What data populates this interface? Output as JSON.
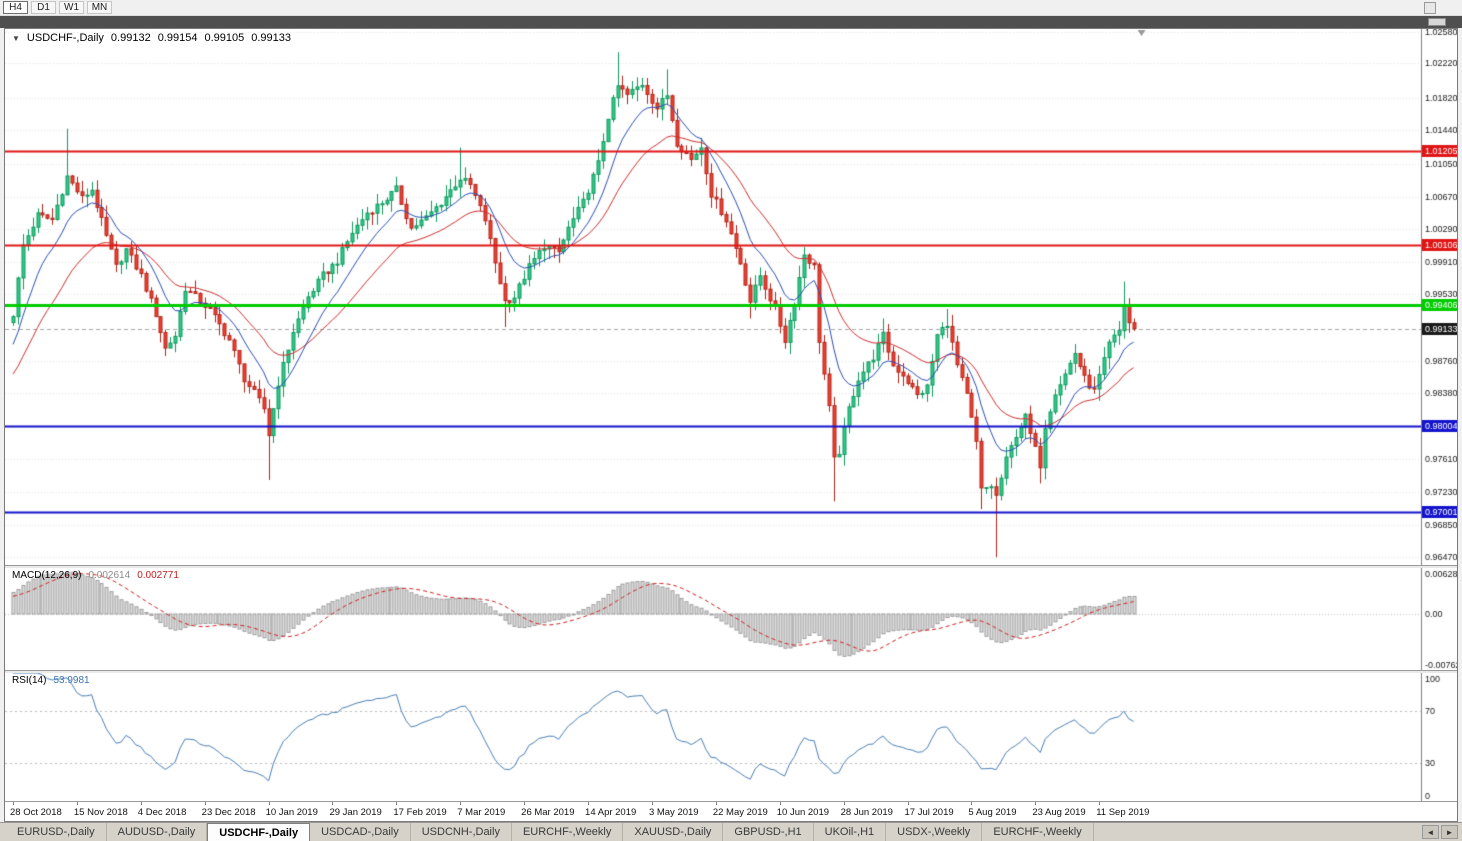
{
  "toolbar": {
    "timeframes": [
      {
        "label": "H4",
        "active": true
      },
      {
        "label": "D1",
        "active": false
      },
      {
        "label": "W1",
        "active": false
      },
      {
        "label": "MN",
        "active": false
      }
    ]
  },
  "chart_header": {
    "dropdown_icon": "▼",
    "symbol": "USDCHF-,Daily",
    "open": "0.99132",
    "high": "0.99154",
    "low": "0.99105",
    "close": "0.99133"
  },
  "indicators": {
    "macd": {
      "label": "MACD(12,26,9)",
      "fast": 12,
      "slow": 26,
      "signal_period": 9,
      "value_main": "0.002614",
      "value_signal": "0.002771"
    },
    "rsi": {
      "label": "RSI(14)",
      "period": 14,
      "value": "53.9981"
    }
  },
  "tabs": {
    "items": [
      "EURUSD-,Daily",
      "AUDUSD-,Daily",
      "USDCHF-,Daily",
      "USDCAD-,Daily",
      "USDCNH-,Daily",
      "EURCHF-,Weekly",
      "XAUUSD-,Daily",
      "GBPUSD-,H1",
      "UKOil-,H1",
      "USDX-,Weekly",
      "EURCHF-,Weekly"
    ],
    "active_index": 2,
    "scroll_left_icon": "◄",
    "scroll_right_icon": "►"
  },
  "chart_data": {
    "type": "candlestick",
    "symbol": "USDCHF",
    "timeframe": "Daily",
    "visible_bars": 229,
    "price_axis": {
      "min": 0.9638,
      "max": 1.0262,
      "tick_values": [
        1.0258,
        1.0222,
        1.0182,
        1.0144,
        1.0105,
        1.0067,
        1.0029,
        0.9991,
        0.9953,
        0.9876,
        0.9838,
        0.9761,
        0.9723,
        0.9685,
        0.9647
      ],
      "tick_labels": [
        "1.02580",
        "1.02220",
        "1.01820",
        "1.01440",
        "1.01050",
        "1.00670",
        "1.00290",
        "0.99910",
        "0.99530",
        "0.98760",
        "0.98380",
        "0.97610",
        "0.97230",
        "0.96850",
        "0.96470"
      ]
    },
    "hlines": [
      {
        "value": 1.01205,
        "label": "1.01205",
        "color": "#e01616",
        "width": 2
      },
      {
        "value": 1.00106,
        "label": "1.00106",
        "color": "#e01616",
        "width": 2
      },
      {
        "value": 0.99406,
        "label": "0.99406",
        "color": "#00cc00",
        "width": 3
      },
      {
        "value": 0.98004,
        "label": "0.98004",
        "color": "#1414cc",
        "width": 2
      },
      {
        "value": 0.97001,
        "label": "0.97001",
        "color": "#1414cc",
        "width": 2
      }
    ],
    "current_price": {
      "value": 0.99133,
      "label": "0.99133",
      "box_color": "#1a1a1a"
    },
    "x_labels": [
      "28 Oct 2018",
      "15 Nov 2018",
      "4 Dec 2018",
      "23 Dec 2018",
      "10 Jan 2019",
      "29 Jan 2019",
      "17 Feb 2019",
      "7 Mar 2019",
      "26 Mar 2019",
      "14 Apr 2019",
      "3 May 2019",
      "22 May 2019",
      "10 Jun 2019",
      "28 Jun 2019",
      "17 Jul 2019",
      "5 Aug 2019",
      "23 Aug 2019",
      "11 Sep 2019"
    ],
    "close_anchors": [
      [
        0,
        0.993
      ],
      [
        2,
        1.001
      ],
      [
        5,
        1.0045
      ],
      [
        8,
        1.004
      ],
      [
        11,
        1.009
      ],
      [
        14,
        1.0065
      ],
      [
        16,
        1.0075
      ],
      [
        19,
        1.002
      ],
      [
        21,
        0.9985
      ],
      [
        23,
        1.0005
      ],
      [
        26,
        0.9975
      ],
      [
        29,
        0.993
      ],
      [
        31,
        0.989
      ],
      [
        33,
        0.9905
      ],
      [
        35,
        0.996
      ],
      [
        37,
        0.995
      ],
      [
        40,
        0.9935
      ],
      [
        44,
        0.99
      ],
      [
        47,
        0.9855
      ],
      [
        49,
        0.9838
      ],
      [
        51,
        0.982
      ],
      [
        52,
        0.979
      ],
      [
        54,
        0.985
      ],
      [
        57,
        0.991
      ],
      [
        60,
        0.995
      ],
      [
        63,
        0.9975
      ],
      [
        66,
        0.9992
      ],
      [
        69,
        1.0025
      ],
      [
        72,
        1.0048
      ],
      [
        75,
        1.006
      ],
      [
        78,
        1.0075
      ],
      [
        81,
        1.003
      ],
      [
        84,
        1.0042
      ],
      [
        87,
        1.006
      ],
      [
        91,
        1.0088
      ],
      [
        93,
        1.008
      ],
      [
        96,
        1.004
      ],
      [
        98,
        0.999
      ],
      [
        100,
        0.9945
      ],
      [
        102,
        0.995
      ],
      [
        105,
        0.9985
      ],
      [
        108,
        1.001
      ],
      [
        111,
        1.0002
      ],
      [
        113,
        1.003
      ],
      [
        116,
        1.006
      ],
      [
        119,
        1.0105
      ],
      [
        121,
        1.016
      ],
      [
        123,
        1.0195
      ],
      [
        125,
        1.0185
      ],
      [
        128,
        1.0198
      ],
      [
        131,
        1.017
      ],
      [
        133,
        1.0185
      ],
      [
        135,
        1.013
      ],
      [
        138,
        1.011
      ],
      [
        140,
        1.0125
      ],
      [
        142,
        1.007
      ],
      [
        145,
        1.004
      ],
      [
        148,
        0.999
      ],
      [
        150,
        0.9945
      ],
      [
        152,
        0.9975
      ],
      [
        155,
        0.9935
      ],
      [
        157,
        0.99
      ],
      [
        159,
        0.9945
      ],
      [
        161,
        1.0
      ],
      [
        163,
        0.9985
      ],
      [
        164,
        0.99
      ],
      [
        166,
        0.982
      ],
      [
        167,
        0.976
      ],
      [
        168,
        0.977
      ],
      [
        170,
        0.982
      ],
      [
        172,
        0.9855
      ],
      [
        175,
        0.988
      ],
      [
        177,
        0.9905
      ],
      [
        179,
        0.987
      ],
      [
        181,
        0.986
      ],
      [
        184,
        0.9835
      ],
      [
        186,
        0.9845
      ],
      [
        188,
        0.9905
      ],
      [
        190,
        0.992
      ],
      [
        192,
        0.987
      ],
      [
        194,
        0.9835
      ],
      [
        196,
        0.978
      ],
      [
        197,
        0.9725
      ],
      [
        199,
        0.973
      ],
      [
        200,
        0.9718
      ],
      [
        202,
        0.976
      ],
      [
        204,
        0.979
      ],
      [
        206,
        0.981
      ],
      [
        207,
        0.979
      ],
      [
        209,
        0.9755
      ],
      [
        210,
        0.98
      ],
      [
        212,
        0.984
      ],
      [
        214,
        0.986
      ],
      [
        216,
        0.9885
      ],
      [
        218,
        0.9855
      ],
      [
        220,
        0.984
      ],
      [
        222,
        0.9875
      ],
      [
        223,
        0.9895
      ],
      [
        225,
        0.991
      ],
      [
        226,
        0.994
      ],
      [
        227,
        0.992
      ],
      [
        228,
        0.99133
      ]
    ],
    "wick_overrides": {
      "highs": [
        [
          11,
          1.0146
        ],
        [
          78,
          1.009
        ],
        [
          91,
          1.0124
        ],
        [
          123,
          1.0235
        ],
        [
          133,
          1.0215
        ],
        [
          161,
          1.0008
        ],
        [
          177,
          0.9925
        ],
        [
          190,
          0.9936
        ],
        [
          226,
          0.9968
        ]
      ],
      "lows": [
        [
          52,
          0.9737
        ],
        [
          100,
          0.9915
        ],
        [
          150,
          0.9925
        ],
        [
          167,
          0.9712
        ],
        [
          197,
          0.9703
        ],
        [
          200,
          0.9647
        ],
        [
          209,
          0.9733
        ]
      ]
    },
    "macd_axis": {
      "max_label": "0.006286",
      "zero_label": "0.00",
      "min_label": "-0.00762",
      "max_value": 0.006286,
      "min_value": -0.00762,
      "vmax": 0.0068,
      "vmin": -0.0082
    },
    "rsi_axis": {
      "labels": [
        "100",
        "70",
        "30",
        "0"
      ],
      "values": [
        100,
        70,
        30,
        0
      ],
      "levels": [
        70,
        30
      ],
      "range": [
        0,
        100
      ]
    },
    "colors": {
      "up": "#2fca87",
      "up_border": "#119a60",
      "down": "#ef4134",
      "down_border": "#b2261b",
      "ma_fast": "#2b50b4",
      "ma_slow": "#cc2f2f",
      "macd_bar": "#dcdcdc",
      "macd_bar_border": "#9e9e9e",
      "macd_signal": "#cc2222",
      "rsi_line": "#4b7fb5",
      "grid": "#e6e6e6",
      "current_line": "#a8a8a8",
      "scale_border": "#808080"
    }
  }
}
